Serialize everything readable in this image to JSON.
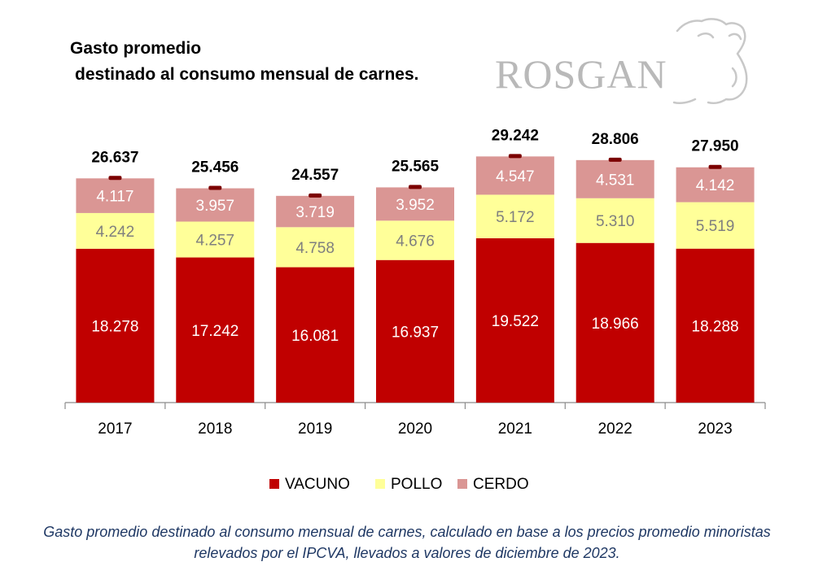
{
  "title_lines": [
    "Gasto promedio",
    "destinado al consumo mensual de carnes."
  ],
  "logo_text": "ROSGAN",
  "caption_lines": [
    "Gasto promedio destinado al consumo mensual de carnes, calculado en base a los precios promedio minoristas",
    "relevados por el IPCVA, llevados a valores de diciembre de 2023."
  ],
  "chart_data": {
    "type": "bar",
    "stacked": true,
    "categories": [
      "2017",
      "2018",
      "2019",
      "2020",
      "2021",
      "2022",
      "2023"
    ],
    "series": [
      {
        "name": "VACUNO",
        "color": "#c00000",
        "label_color": "#ffffff",
        "values": [
          18.278,
          17.242,
          16.081,
          16.937,
          19.522,
          18.966,
          18.288
        ],
        "labels": [
          "18.278",
          "17.242",
          "16.081",
          "16.937",
          "19.522",
          "18.966",
          "18.288"
        ]
      },
      {
        "name": "POLLO",
        "color": "#ffff99",
        "label_color": "#7f7f7f",
        "values": [
          4.242,
          4.257,
          4.758,
          4.676,
          5.172,
          5.31,
          5.519
        ],
        "labels": [
          "4.242",
          "4.257",
          "4.758",
          "4.676",
          "5.172",
          "5.310",
          "5.519"
        ]
      },
      {
        "name": "CERDO",
        "color": "#da9694",
        "label_color": "#ffffff",
        "values": [
          4.117,
          3.957,
          3.719,
          3.952,
          4.547,
          4.531,
          4.142
        ],
        "labels": [
          "4.117",
          "3.957",
          "3.719",
          "3.952",
          "4.547",
          "4.531",
          "4.142"
        ]
      }
    ],
    "totals": [
      26.637,
      25.456,
      24.557,
      25.565,
      29.242,
      28.806,
      27.95
    ],
    "total_labels": [
      "26.637",
      "25.456",
      "24.557",
      "25.565",
      "29.242",
      "28.806",
      "27.950"
    ],
    "total_marker_color": "#7b0000",
    "ylim": [
      0,
      30
    ],
    "grid": false,
    "legend_position": "bottom"
  }
}
